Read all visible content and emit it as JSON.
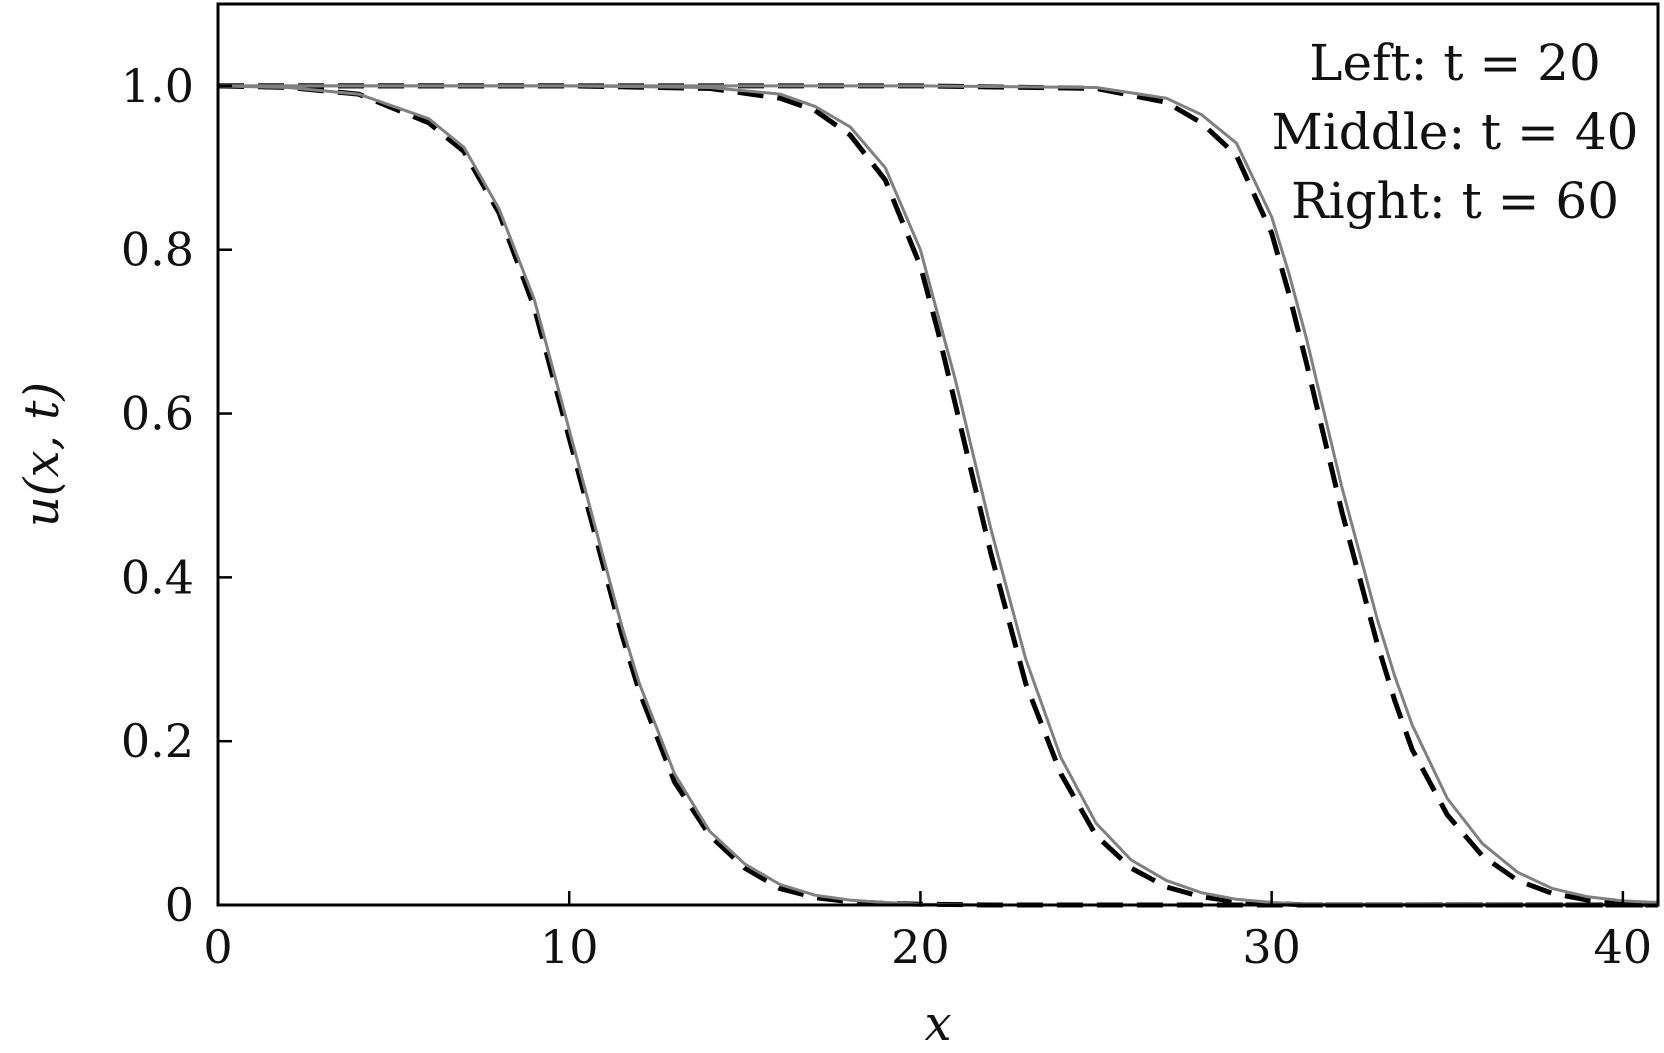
{
  "chart_data": {
    "type": "line",
    "xlabel": "x",
    "ylabel": "u(x, t)",
    "xlim": [
      0,
      41
    ],
    "ylim": [
      0,
      1.1
    ],
    "xticks": [
      "0",
      "10",
      "20",
      "30",
      "40"
    ],
    "yticks": [
      "0",
      "0.2",
      "0.4",
      "0.6",
      "0.8",
      "1.0"
    ],
    "annotation": [
      "Left: t = 20",
      "Middle: t = 40",
      "Right: t = 60"
    ],
    "curve_style": {
      "solid_color": "#808080",
      "dashed_color": "#000000"
    },
    "series": [
      {
        "style": "solid",
        "x": [
          0,
          2,
          4,
          6,
          7,
          8,
          9,
          9.5,
          10,
          10.5,
          11,
          11.5,
          12,
          13,
          14,
          15,
          16,
          17,
          18,
          19,
          20,
          22,
          25,
          41
        ],
        "y": [
          1.0,
          0.998,
          0.99,
          0.96,
          0.925,
          0.85,
          0.74,
          0.66,
          0.58,
          0.5,
          0.42,
          0.34,
          0.27,
          0.16,
          0.09,
          0.05,
          0.025,
          0.012,
          0.006,
          0.003,
          0.001,
          0.0,
          0.0,
          0.0
        ]
      },
      {
        "style": "dashed",
        "x": [
          0,
          2,
          4,
          6,
          7,
          8,
          9,
          9.5,
          10,
          10.5,
          11,
          11.5,
          12,
          13,
          14,
          15,
          16,
          17,
          18,
          19,
          20,
          22,
          25,
          41
        ],
        "y": [
          1.0,
          0.998,
          0.99,
          0.955,
          0.92,
          0.845,
          0.73,
          0.65,
          0.57,
          0.49,
          0.41,
          0.33,
          0.26,
          0.15,
          0.085,
          0.045,
          0.02,
          0.009,
          0.004,
          0.002,
          0.001,
          0.0,
          0.0,
          0.0
        ]
      },
      {
        "style": "solid",
        "x": [
          0,
          10,
          14,
          16,
          17,
          18,
          19,
          20,
          20.5,
          21,
          21.5,
          22,
          22.5,
          23,
          24,
          25,
          26,
          27,
          28,
          29,
          30,
          31,
          41
        ],
        "y": [
          1.0,
          1.0,
          0.998,
          0.99,
          0.975,
          0.95,
          0.9,
          0.8,
          0.72,
          0.64,
          0.55,
          0.46,
          0.38,
          0.3,
          0.18,
          0.1,
          0.055,
          0.03,
          0.015,
          0.007,
          0.003,
          0.001,
          0.0
        ]
      },
      {
        "style": "dashed",
        "x": [
          0,
          10,
          14,
          16,
          17,
          18,
          19,
          20,
          20.5,
          21,
          21.5,
          22,
          22.5,
          23,
          24,
          25,
          26,
          27,
          28,
          29,
          30,
          31,
          41
        ],
        "y": [
          1.0,
          1.0,
          0.997,
          0.985,
          0.97,
          0.94,
          0.885,
          0.78,
          0.7,
          0.61,
          0.52,
          0.43,
          0.35,
          0.27,
          0.16,
          0.085,
          0.045,
          0.022,
          0.01,
          0.004,
          0.002,
          0.0,
          0.0
        ]
      },
      {
        "style": "solid",
        "x": [
          0,
          20,
          25,
          27,
          28,
          29,
          30,
          30.5,
          31,
          31.5,
          32,
          32.5,
          33,
          33.5,
          34,
          35,
          36,
          37,
          38,
          39,
          40,
          41
        ],
        "y": [
          1.0,
          1.0,
          0.998,
          0.985,
          0.965,
          0.93,
          0.84,
          0.77,
          0.69,
          0.6,
          0.51,
          0.43,
          0.35,
          0.28,
          0.22,
          0.13,
          0.075,
          0.04,
          0.02,
          0.01,
          0.005,
          0.003
        ]
      },
      {
        "style": "dashed",
        "x": [
          0,
          20,
          25,
          27,
          28,
          29,
          30,
          30.5,
          31,
          31.5,
          32,
          32.5,
          33,
          33.5,
          34,
          35,
          36,
          37,
          38,
          39,
          40,
          41
        ],
        "y": [
          1.0,
          1.0,
          0.997,
          0.98,
          0.955,
          0.915,
          0.82,
          0.745,
          0.66,
          0.57,
          0.48,
          0.4,
          0.32,
          0.25,
          0.19,
          0.11,
          0.06,
          0.03,
          0.014,
          0.006,
          0.002,
          0.0
        ]
      }
    ]
  }
}
